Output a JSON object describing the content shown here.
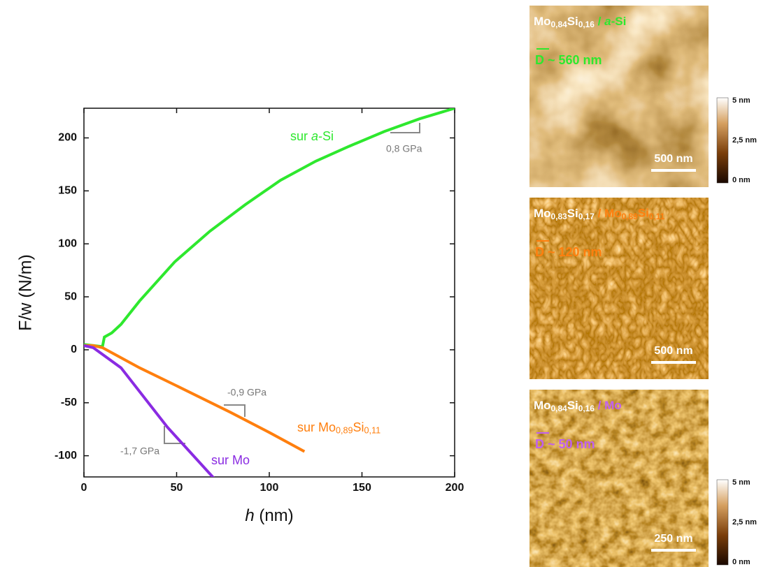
{
  "chart_data": {
    "type": "line",
    "ylabel": "F/w  (N/m)",
    "xlabel": [
      {
        "text": "h",
        "style": "italic"
      },
      {
        "text": " (nm)"
      }
    ],
    "xlim": [
      0,
      200
    ],
    "xticks": [
      0,
      50,
      100,
      150,
      200
    ],
    "ylim": [
      -120,
      228
    ],
    "yticks": [
      -100,
      -50,
      0,
      50,
      100,
      150,
      200
    ],
    "series": [
      {
        "name": [
          {
            "text": "sur "
          },
          {
            "text": "a",
            "style": "italic"
          },
          {
            "text": "-Si"
          }
        ],
        "color": "#2ee82e",
        "x": [
          0,
          5,
          10,
          11,
          15,
          20,
          30,
          49,
          68,
          87,
          106,
          125,
          143,
          162,
          181,
          200
        ],
        "values": [
          5,
          4,
          3,
          12,
          16,
          24,
          46,
          83,
          112,
          137,
          160,
          178,
          192,
          206,
          218,
          228
        ]
      },
      {
        "name": [
          {
            "text": "sur Mo"
          },
          {
            "text": "0,89",
            "style": "sub"
          },
          {
            "text": "Si"
          },
          {
            "text": "0,11",
            "style": "sub"
          }
        ],
        "color": "#ff7f0e",
        "x": [
          0,
          5,
          10,
          30,
          50,
          79,
          100,
          119
        ],
        "values": [
          4,
          4,
          2,
          -17,
          -34,
          -59,
          -78,
          -96
        ]
      },
      {
        "name": [
          {
            "text": "sur Mo"
          }
        ],
        "color": "#8a2be2",
        "x": [
          0,
          5,
          20,
          45,
          70
        ],
        "values": [
          4,
          2,
          -17,
          -73,
          -121
        ]
      }
    ],
    "annotations": [
      "0,8 GPa",
      "-0,9 GPa",
      "-1,7 GPa"
    ]
  },
  "images": [
    {
      "title": [
        {
          "text": "Mo",
          "color": "#ffffff"
        },
        {
          "text": "0,84",
          "style": "sub",
          "color": "#ffffff"
        },
        {
          "text": "Si",
          "color": "#ffffff"
        },
        {
          "text": "0,16",
          "style": "sub",
          "color": "#ffffff"
        },
        {
          "text": " / ",
          "color": "#2ee82e"
        },
        {
          "text": "a",
          "style": "italic",
          "color": "#2ee82e"
        },
        {
          "text": "-Si",
          "color": "#2ee82e"
        }
      ],
      "grain": "D ~ 560 nm",
      "grain_color": "#2ee82e",
      "scale": "500 nm",
      "colorbar": [
        "5 nm",
        "2,5 nm",
        "0 nm"
      ]
    },
    {
      "title": [
        {
          "text": "Mo",
          "color": "#ffffff"
        },
        {
          "text": "0,83",
          "style": "sub",
          "color": "#ffffff"
        },
        {
          "text": "Si",
          "color": "#ffffff"
        },
        {
          "text": "0,17",
          "style": "sub",
          "color": "#ffffff"
        },
        {
          "text": " / Mo",
          "color": "#ff7f0e"
        },
        {
          "text": "0,89",
          "style": "sub",
          "color": "#ff7f0e"
        },
        {
          "text": "Si",
          "color": "#ff7f0e"
        },
        {
          "text": "0,11",
          "style": "sub",
          "color": "#ff7f0e"
        }
      ],
      "grain": "D ~ 120 nm",
      "grain_color": "#ff7f0e",
      "scale": "500 nm"
    },
    {
      "title": [
        {
          "text": "Mo",
          "color": "#ffffff"
        },
        {
          "text": "0,84",
          "style": "sub",
          "color": "#ffffff"
        },
        {
          "text": "Si",
          "color": "#ffffff"
        },
        {
          "text": "0,16",
          "style": "sub",
          "color": "#ffffff"
        },
        {
          "text": " / Mo",
          "color": "#c060f0"
        }
      ],
      "grain": "D ~ 50 nm",
      "grain_color": "#c060f0",
      "scale": "250 nm",
      "colorbar": [
        "5 nm",
        "2,5 nm",
        "0 nm"
      ]
    }
  ]
}
